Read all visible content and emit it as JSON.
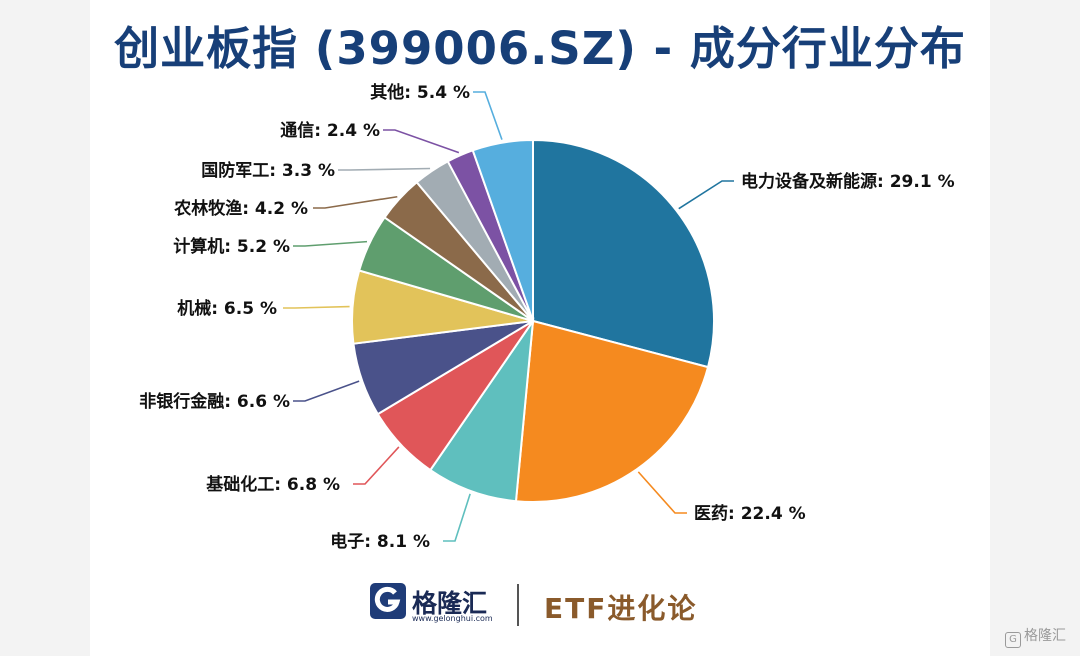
{
  "title": "创业板指 (399006.SZ) - 成分行业分布",
  "chart_data": {
    "type": "pie",
    "title": "创业板指 (399006.SZ) - 成分行业分布",
    "start_position": "top, clockwise",
    "slices": [
      {
        "label": "电力设备及新能源",
        "value": 29.1,
        "display": "电力设备及新能源: 29.1 %",
        "color": "#20759f"
      },
      {
        "label": "医药",
        "value": 22.4,
        "display": "医药: 22.4 %",
        "color": "#f58a1f"
      },
      {
        "label": "电子",
        "value": 8.1,
        "display": "电子: 8.1 %",
        "color": "#5fbfbe"
      },
      {
        "label": "基础化工",
        "value": 6.8,
        "display": "基础化工: 6.8 %",
        "color": "#e05659"
      },
      {
        "label": "非银行金融",
        "value": 6.6,
        "display": "非银行金融: 6.6 %",
        "color": "#4a528a"
      },
      {
        "label": "机械",
        "value": 6.5,
        "display": "机械: 6.5 %",
        "color": "#e2c35a"
      },
      {
        "label": "计算机",
        "value": 5.2,
        "display": "计算机: 5.2 %",
        "color": "#5f9e6e"
      },
      {
        "label": "农林牧渔",
        "value": 4.2,
        "display": "农林牧渔: 4.2 %",
        "color": "#8b6a4a"
      },
      {
        "label": "国防军工",
        "value": 3.3,
        "display": "国防军工: 3.3 %",
        "color": "#a2acb3"
      },
      {
        "label": "通信",
        "value": 2.4,
        "display": "通信: 2.4 %",
        "color": "#7c52a4"
      },
      {
        "label": "其他",
        "value": 5.4,
        "display": "其他: 5.4 %",
        "color": "#56aede"
      }
    ]
  },
  "footer": {
    "brand_name": "格隆汇",
    "brand_url": "www.gelonghui.com",
    "series_name": "ETF进化论"
  },
  "watermark": {
    "text": "格隆汇"
  }
}
